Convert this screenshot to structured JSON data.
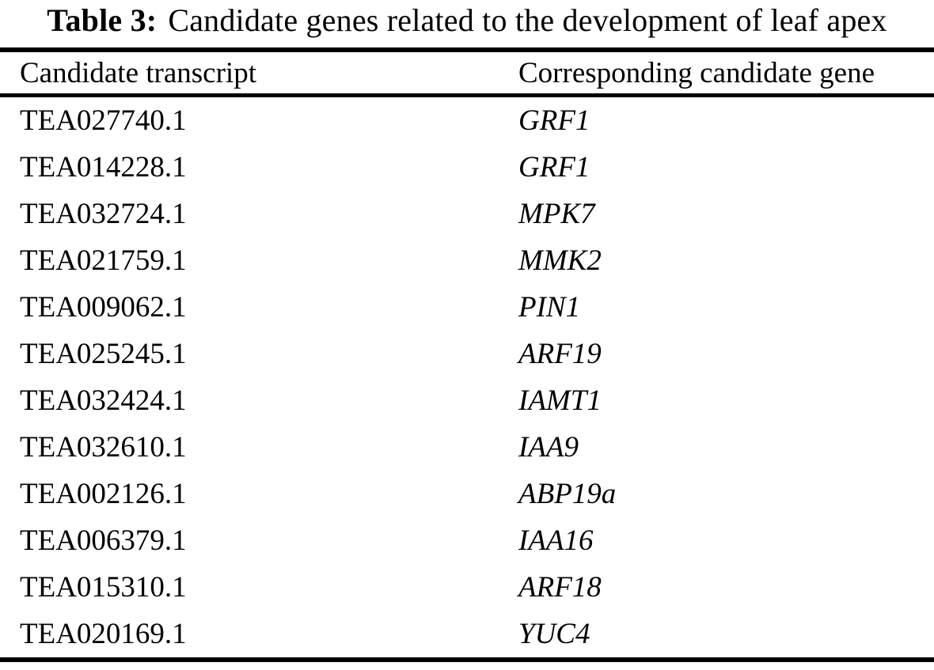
{
  "colors": {
    "text": "#000000",
    "background": "#ffffff",
    "rule": "#000000"
  },
  "table": {
    "title_label": "Table 3:",
    "title_text": "Candidate genes related to the development of leaf apex",
    "columns": [
      "Candidate transcript",
      "Corresponding candidate gene"
    ],
    "rows": [
      {
        "transcript": "TEA027740.1",
        "gene": "GRF1"
      },
      {
        "transcript": "TEA014228.1",
        "gene": "GRF1"
      },
      {
        "transcript": "TEA032724.1",
        "gene": "MPK7"
      },
      {
        "transcript": "TEA021759.1",
        "gene": "MMK2"
      },
      {
        "transcript": "TEA009062.1",
        "gene": "PIN1"
      },
      {
        "transcript": "TEA025245.1",
        "gene": "ARF19"
      },
      {
        "transcript": "TEA032424.1",
        "gene": "IAMT1"
      },
      {
        "transcript": "TEA032610.1",
        "gene": "IAA9"
      },
      {
        "transcript": "TEA002126.1",
        "gene": "ABP19a"
      },
      {
        "transcript": "TEA006379.1",
        "gene": "IAA16"
      },
      {
        "transcript": "TEA015310.1",
        "gene": "ARF18"
      },
      {
        "transcript": "TEA020169.1",
        "gene": "YUC4"
      }
    ]
  }
}
